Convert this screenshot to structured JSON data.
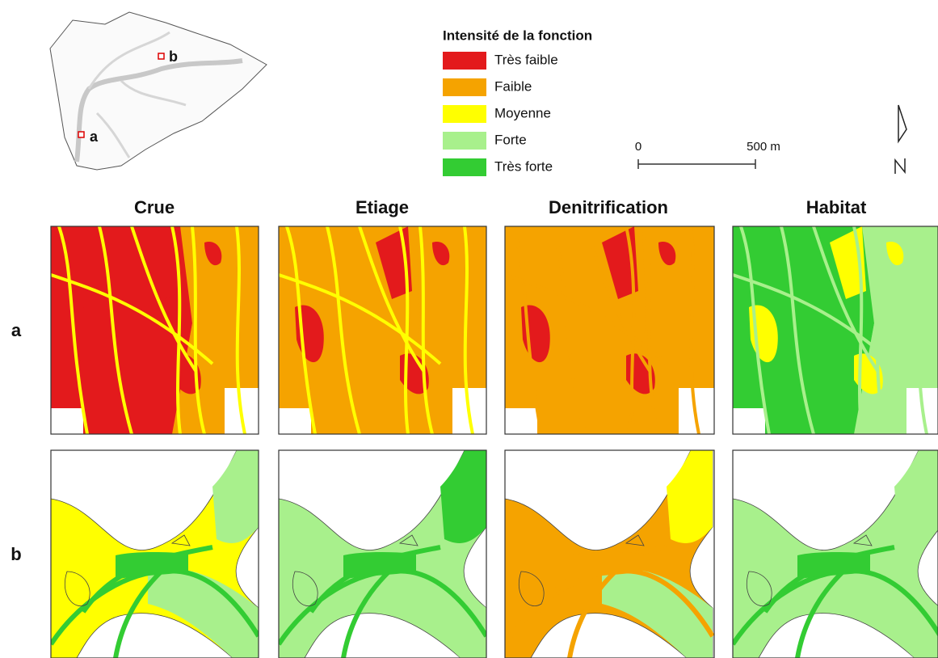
{
  "inset": {
    "labels": [
      "a",
      "b"
    ]
  },
  "legend": {
    "title": "Intensité de la fonction",
    "items": [
      {
        "label": "Très faible",
        "color": "#e31a1c"
      },
      {
        "label": "Faible",
        "color": "#f5a300"
      },
      {
        "label": "Moyenne",
        "color": "#ffff00"
      },
      {
        "label": "Forte",
        "color": "#a8f08c"
      },
      {
        "label": "Très forte",
        "color": "#33cc33"
      }
    ]
  },
  "scale_bar": {
    "labels": [
      "0",
      "500 m"
    ]
  },
  "columns": [
    "Crue",
    "Etiage",
    "Denitrification",
    "Habitat"
  ],
  "rows": [
    "a",
    "b"
  ]
}
